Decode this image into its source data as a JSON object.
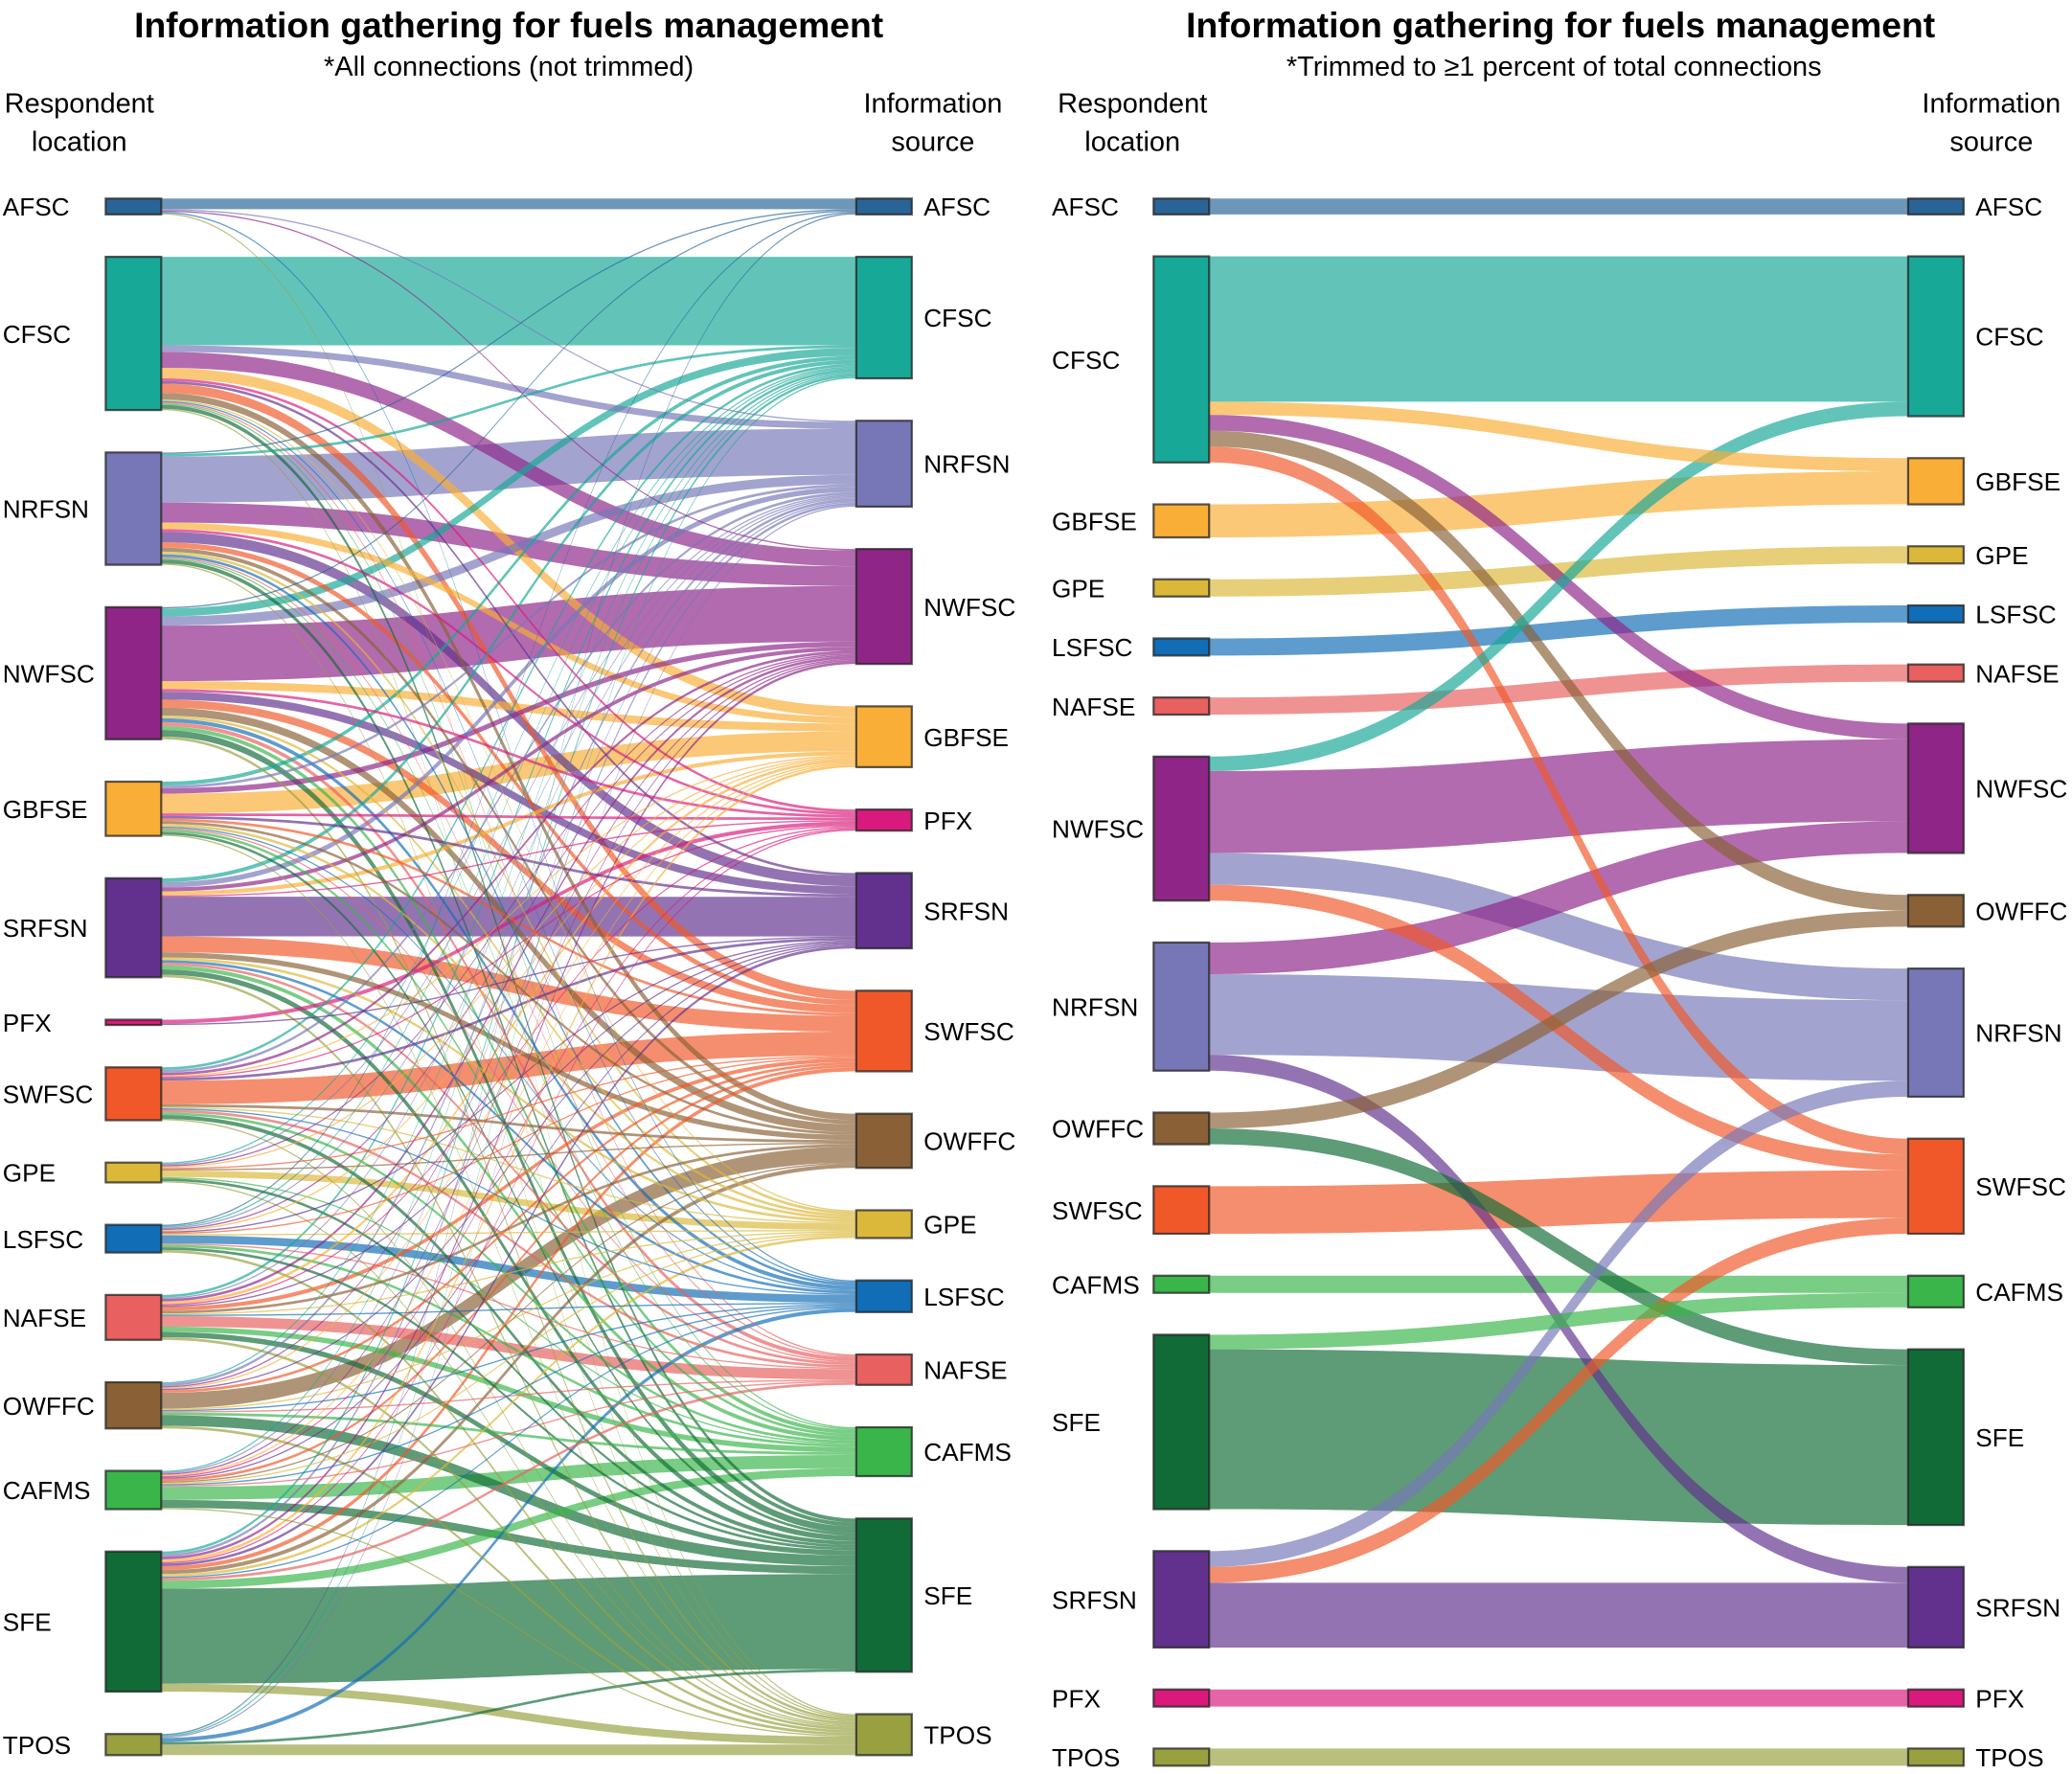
{
  "chart_data": [
    {
      "type": "sankey",
      "title": "Information gathering for fuels management",
      "subtitle": "*All connections (not trimmed)",
      "left_header": [
        "Respondent",
        "location"
      ],
      "right_header": [
        "Information",
        "source"
      ],
      "link_color": "target",
      "left_nodes": [
        "AFSC",
        "CFSC",
        "NRFSN",
        "NWFSC",
        "GBFSE",
        "SRFSN",
        "PFX",
        "SWFSC",
        "GPE",
        "LSFSC",
        "NAFSE",
        "OWFFC",
        "CAFMS",
        "SFE",
        "TPOS"
      ],
      "right_nodes": [
        "AFSC",
        "CFSC",
        "NRFSN",
        "NWFSC",
        "GBFSE",
        "PFX",
        "SRFSN",
        "SWFSC",
        "OWFFC",
        "GPE",
        "LSFSC",
        "NAFSE",
        "CAFMS",
        "SFE",
        "TPOS"
      ],
      "link_matrix": [
        [
          8,
          0,
          1,
          1,
          0,
          0,
          0,
          0,
          0,
          0,
          1,
          0,
          0,
          0,
          1
        ],
        [
          0,
          67,
          5,
          12,
          8,
          2,
          2,
          7,
          5,
          1,
          1,
          1,
          1,
          3,
          1
        ],
        [
          1,
          2,
          35,
          15,
          5,
          2,
          8,
          4,
          3,
          2,
          2,
          1,
          1,
          3,
          1
        ],
        [
          1,
          6,
          7,
          42,
          6,
          2,
          6,
          6,
          6,
          2,
          3,
          3,
          3,
          5,
          2
        ],
        [
          0,
          3,
          2,
          4,
          15,
          2,
          2,
          2,
          2,
          2,
          1,
          1,
          2,
          2,
          1
        ],
        [
          0,
          3,
          4,
          3,
          3,
          1,
          30,
          12,
          4,
          2,
          2,
          2,
          3,
          4,
          2
        ],
        [
          0,
          0,
          0,
          0,
          0,
          3,
          1,
          0,
          0,
          0,
          0,
          0,
          0,
          0,
          0
        ],
        [
          0,
          2,
          2,
          2,
          1,
          1,
          2,
          18,
          2,
          1,
          1,
          2,
          2,
          3,
          1
        ],
        [
          0,
          1,
          1,
          1,
          1,
          0,
          0,
          1,
          1,
          5,
          0,
          0,
          1,
          2,
          1
        ],
        [
          1,
          1,
          1,
          1,
          1,
          0,
          1,
          1,
          0,
          1,
          6,
          1,
          2,
          2,
          2
        ],
        [
          0,
          2,
          1,
          2,
          2,
          1,
          1,
          3,
          2,
          1,
          1,
          8,
          4,
          4,
          2
        ],
        [
          0,
          1,
          2,
          1,
          1,
          0,
          1,
          2,
          12,
          1,
          1,
          1,
          2,
          8,
          2
        ],
        [
          0,
          1,
          1,
          1,
          1,
          1,
          1,
          2,
          1,
          1,
          1,
          1,
          10,
          6,
          1
        ],
        [
          0,
          2,
          2,
          2,
          2,
          1,
          2,
          3,
          3,
          2,
          1,
          2,
          6,
          72,
          6
        ],
        [
          1,
          1,
          1,
          0,
          0,
          0,
          0,
          0,
          0,
          0,
          3,
          0,
          0,
          2,
          8
        ]
      ]
    },
    {
      "type": "sankey",
      "title": "Information gathering for fuels management",
      "subtitle": "*Trimmed to ≥1 percent of total connections",
      "left_header": [
        "Respondent",
        "location"
      ],
      "right_header": [
        "Information",
        "source"
      ],
      "link_color": "target",
      "left_nodes": [
        "AFSC",
        "CFSC",
        "GBFSE",
        "GPE",
        "LSFSC",
        "NAFSE",
        "NWFSC",
        "NRFSN",
        "OWFFC",
        "SWFSC",
        "CAFMS",
        "SFE",
        "SRFSN",
        "PFX",
        "TPOS"
      ],
      "right_nodes": [
        "AFSC",
        "CFSC",
        "GBFSE",
        "GPE",
        "LSFSC",
        "NAFSE",
        "NWFSC",
        "OWFFC",
        "NRFSN",
        "SWFSC",
        "CAFMS",
        "SFE",
        "SRFSN",
        "PFX",
        "TPOS"
      ],
      "links": [
        [
          "AFSC",
          "AFSC",
          12
        ],
        [
          "CFSC",
          "CFSC",
          110
        ],
        [
          "CFSC",
          "GBFSE",
          10
        ],
        [
          "CFSC",
          "NWFSC",
          12
        ],
        [
          "CFSC",
          "OWFFC",
          12
        ],
        [
          "CFSC",
          "SWFSC",
          12
        ],
        [
          "GBFSE",
          "GBFSE",
          25
        ],
        [
          "GPE",
          "GPE",
          13
        ],
        [
          "LSFSC",
          "LSFSC",
          13
        ],
        [
          "NAFSE",
          "NAFSE",
          13
        ],
        [
          "NWFSC",
          "CFSC",
          11
        ],
        [
          "NWFSC",
          "NWFSC",
          62
        ],
        [
          "NWFSC",
          "NRFSN",
          24
        ],
        [
          "NWFSC",
          "SWFSC",
          12
        ],
        [
          "NRFSN",
          "NWFSC",
          24
        ],
        [
          "NRFSN",
          "NRFSN",
          61
        ],
        [
          "NRFSN",
          "SRFSN",
          12
        ],
        [
          "OWFFC",
          "OWFFC",
          12
        ],
        [
          "OWFFC",
          "SFE",
          12
        ],
        [
          "SWFSC",
          "SWFSC",
          36
        ],
        [
          "CAFMS",
          "CAFMS",
          13
        ],
        [
          "SFE",
          "CAFMS",
          11
        ],
        [
          "SFE",
          "SFE",
          121
        ],
        [
          "SRFSN",
          "NRFSN",
          12
        ],
        [
          "SRFSN",
          "SWFSC",
          12
        ],
        [
          "SRFSN",
          "SRFSN",
          49
        ],
        [
          "PFX",
          "PFX",
          13
        ],
        [
          "TPOS",
          "TPOS",
          13
        ]
      ]
    }
  ],
  "node_colors": {
    "AFSC": "#2a6496",
    "CFSC": "#18a898",
    "NRFSN": "#7777b8",
    "NWFSC": "#8e2587",
    "GBFSE": "#f9ae37",
    "PFX": "#d91a7c",
    "SRFSN": "#62318e",
    "SWFSC": "#f0582a",
    "OWFFC": "#8a6136",
    "GPE": "#dcb83a",
    "LSFSC": "#106db6",
    "NAFSE": "#e8605f",
    "CAFMS": "#3ab54a",
    "SFE": "#116b37",
    "TPOS": "#98a040"
  }
}
